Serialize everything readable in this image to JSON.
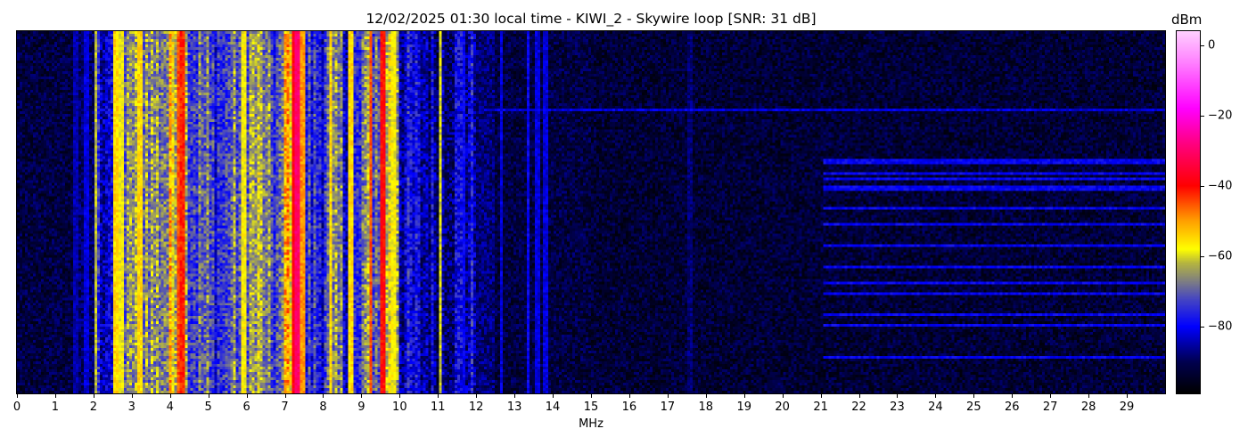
{
  "chart_data": {
    "type": "heatmap",
    "title": "12/02/2025 01:30 local time - KIWI_2 - Skywire loop [SNR: 31 dB]",
    "xlabel": "MHz",
    "ylabel": "",
    "xlim": [
      0,
      30
    ],
    "x_ticks": [
      "0",
      "1",
      "2",
      "3",
      "4",
      "5",
      "6",
      "7",
      "8",
      "9",
      "10",
      "11",
      "12",
      "13",
      "14",
      "15",
      "16",
      "17",
      "18",
      "19",
      "20",
      "21",
      "22",
      "23",
      "24",
      "25",
      "26",
      "27",
      "28",
      "29"
    ],
    "colorbar": {
      "label": "dBm",
      "range": [
        -99,
        4
      ],
      "ticks": [
        "0",
        "−20",
        "−40",
        "−60",
        "−80"
      ],
      "tick_values": [
        0,
        -20,
        -40,
        -60,
        -80
      ],
      "colormap": [
        [
          -99,
          "#000000"
        ],
        [
          -90,
          "#000050"
        ],
        [
          -80,
          "#0000ff"
        ],
        [
          -72,
          "#4848c0"
        ],
        [
          -67,
          "#808080"
        ],
        [
          -62,
          "#b4b440"
        ],
        [
          -58,
          "#ffff00"
        ],
        [
          -50,
          "#ffa000"
        ],
        [
          -40,
          "#ff0000"
        ],
        [
          -28,
          "#ff0080"
        ],
        [
          -18,
          "#ff00ff"
        ],
        [
          -5,
          "#ff80ff"
        ],
        [
          4,
          "#ffd0ff"
        ]
      ]
    },
    "time_rows": 136,
    "band_profile_mhz_step": 0.5,
    "band_profile_dbm": [
      -92,
      -92,
      -92,
      -89,
      -80,
      -70,
      -64,
      -66,
      -57,
      -71,
      -75,
      -70,
      -65,
      -72,
      -52,
      -76,
      -71,
      -78,
      -68,
      -61,
      -82,
      -84,
      -83,
      -82,
      -88,
      -92,
      -92,
      -92,
      -92,
      -92,
      -93,
      -93,
      -93,
      -93,
      -93,
      -93,
      -93,
      -93,
      -93,
      -93,
      -93,
      -93,
      -93,
      -93,
      -93,
      -93,
      -93,
      -93,
      -93,
      -93,
      -93,
      -93,
      -93,
      -93,
      -93,
      -93,
      -93,
      -93,
      -93,
      -93
    ],
    "carriers": [
      {
        "mhz": 1.55,
        "dbm": -85
      },
      {
        "mhz": 1.8,
        "dbm": -82
      },
      {
        "mhz": 2.05,
        "dbm": -62
      },
      {
        "mhz": 2.6,
        "dbm": -55
      },
      {
        "mhz": 2.7,
        "dbm": -58
      },
      {
        "mhz": 3.2,
        "dbm": -55
      },
      {
        "mhz": 4.25,
        "dbm": -45
      },
      {
        "mhz": 4.32,
        "dbm": -42
      },
      {
        "mhz": 5.95,
        "dbm": -58
      },
      {
        "mhz": 7.25,
        "dbm": -38
      },
      {
        "mhz": 7.32,
        "dbm": -30
      },
      {
        "mhz": 7.45,
        "dbm": -50
      },
      {
        "mhz": 8.2,
        "dbm": -55
      },
      {
        "mhz": 8.7,
        "dbm": -55
      },
      {
        "mhz": 9.25,
        "dbm": -45
      },
      {
        "mhz": 9.55,
        "dbm": -40
      },
      {
        "mhz": 9.85,
        "dbm": -58
      },
      {
        "mhz": 11.05,
        "dbm": -60
      },
      {
        "mhz": 11.7,
        "dbm": -80
      },
      {
        "mhz": 12.65,
        "dbm": -82
      },
      {
        "mhz": 13.35,
        "dbm": -80
      },
      {
        "mhz": 13.6,
        "dbm": -82
      },
      {
        "mhz": 13.8,
        "dbm": -82
      },
      {
        "mhz": 17.6,
        "dbm": -88
      }
    ],
    "interference_rows": {
      "mhz_range": [
        21.1,
        30
      ],
      "dbm": -80,
      "rows": [
        48,
        49,
        53,
        55,
        58,
        59,
        66,
        72,
        80,
        88,
        94,
        98,
        106,
        110,
        122
      ]
    },
    "wideband_rows": {
      "mhz_range": [
        12.2,
        30
      ],
      "dbm": -82,
      "rows": [
        29
      ]
    }
  }
}
